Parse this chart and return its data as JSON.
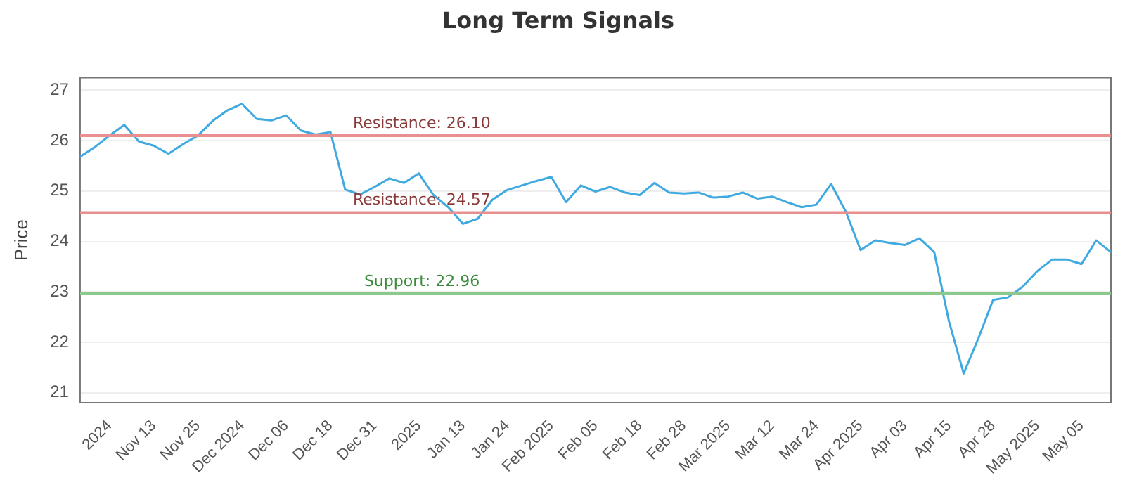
{
  "chart_data": {
    "type": "line",
    "title": "Long Term Signals",
    "ylabel": "Price",
    "categories": [
      null,
      null,
      "2024",
      null,
      null,
      "Nov 13",
      null,
      null,
      "Nov 25",
      null,
      null,
      "Dec 2024",
      null,
      null,
      "Dec 06",
      null,
      null,
      "Dec 18",
      null,
      null,
      "Dec 31",
      null,
      null,
      "2025",
      null,
      null,
      "Jan 13",
      null,
      null,
      "Jan 24",
      null,
      null,
      "Feb 2025",
      null,
      null,
      "Feb 05",
      null,
      null,
      "Feb 18",
      null,
      null,
      "Feb 28",
      null,
      null,
      "Mar 2025",
      null,
      null,
      "Mar 12",
      null,
      null,
      "Mar 24",
      null,
      null,
      "Apr 2025",
      null,
      null,
      "Apr 03",
      null,
      null,
      "Apr 15",
      null,
      null,
      "Apr 28",
      null,
      null,
      "May 2025",
      null,
      null,
      "May 05",
      null,
      null
    ],
    "series": [
      {
        "color": "#3fa9e0",
        "values": [
          25.68,
          25.87,
          26.1,
          26.31,
          25.98,
          25.9,
          25.74,
          25.93,
          26.1,
          26.39,
          26.6,
          26.73,
          26.43,
          26.4,
          26.5,
          26.2,
          26.12,
          26.17,
          25.03,
          24.93,
          25.08,
          25.25,
          25.16,
          25.35,
          24.92,
          24.68,
          24.35,
          24.45,
          24.83,
          25.02,
          25.11,
          25.2,
          25.28,
          24.78,
          25.11,
          24.99,
          25.08,
          24.97,
          24.92,
          25.16,
          24.97,
          24.95,
          24.97,
          24.87,
          24.89,
          24.97,
          24.85,
          24.89,
          24.78,
          24.68,
          24.73,
          25.14,
          24.59,
          23.83,
          24.02,
          23.97,
          23.93,
          24.06,
          23.79,
          22.42,
          21.38,
          22.08,
          22.84,
          22.89,
          23.1,
          23.41,
          23.64,
          23.64,
          23.55,
          24.02,
          23.79
        ]
      }
    ],
    "ylim": [
      20.8,
      27.25
    ],
    "yticks": [
      21,
      22,
      23,
      24,
      25,
      26,
      27
    ],
    "grid": "y",
    "marker": "none",
    "line_style": "solid",
    "ref_lines": [
      {
        "axis": "y",
        "value": 26.1,
        "label": "Resistance: 26.10",
        "color": "#e89090"
      },
      {
        "axis": "y",
        "value": 24.57,
        "label": "Resistance: 24.57",
        "color": "#e89090"
      },
      {
        "axis": "y",
        "value": 22.96,
        "label": "Support: 22.96",
        "color": "#8cc98c"
      }
    ]
  }
}
